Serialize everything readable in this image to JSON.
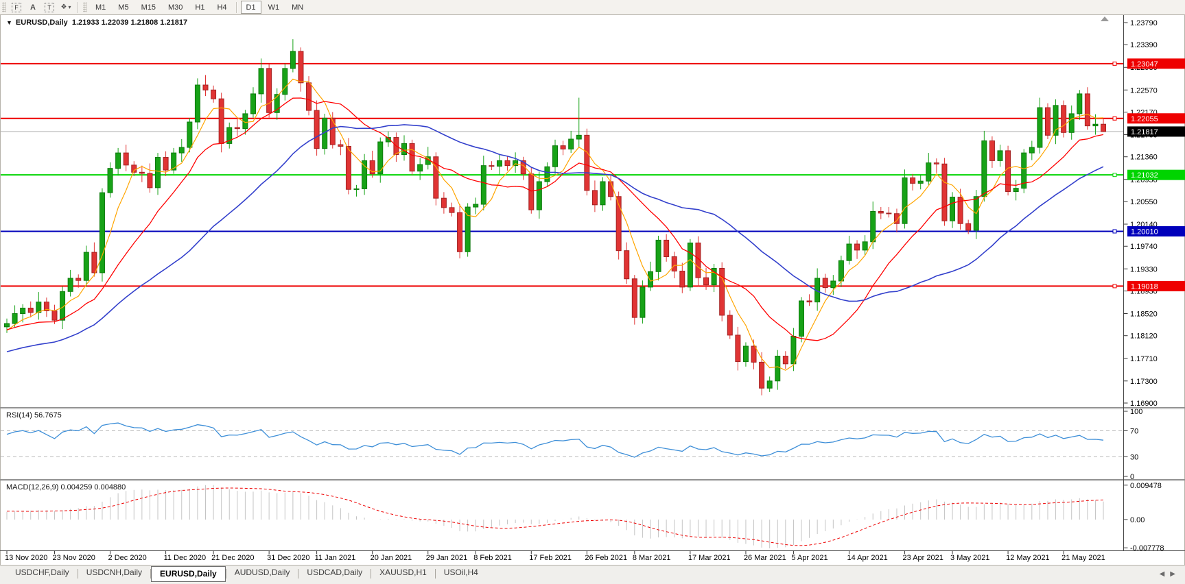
{
  "toolbar": {
    "tools": [
      {
        "name": "fibonacci-tool",
        "glyph": "F",
        "kind": "dotbox"
      },
      {
        "name": "text-tool",
        "glyph": "A",
        "kind": "plain"
      },
      {
        "name": "text-label-tool",
        "glyph": "T",
        "kind": "dotbox"
      },
      {
        "name": "arrows-tool",
        "glyph": "❖",
        "kind": "dropdown"
      }
    ],
    "timeframes": [
      "M1",
      "M5",
      "M15",
      "M30",
      "H1",
      "H4",
      "D1",
      "W1",
      "MN"
    ],
    "active_timeframe": "D1"
  },
  "chart": {
    "symbol_title": "EURUSD,Daily",
    "ohlc_text": "1.21933 1.22039 1.21808 1.21817",
    "price_axis": [
      "1.23790",
      "1.23390",
      "1.22980",
      "1.22570",
      "1.22170",
      "1.21760",
      "1.21360",
      "1.20950",
      "1.20550",
      "1.20140",
      "1.19740",
      "1.19330",
      "1.18930",
      "1.18520",
      "1.18120",
      "1.17710",
      "1.17300",
      "1.16900"
    ],
    "price_top": 1.2379,
    "price_bottom": 1.169,
    "hlines": [
      {
        "price": 1.23047,
        "label": "1.23047",
        "color": "#ee0000"
      },
      {
        "price": 1.22055,
        "label": "1.22055",
        "color": "#ee0000"
      },
      {
        "price": 1.21032,
        "label": "1.21032",
        "color": "#00d400"
      },
      {
        "price": 1.2001,
        "label": "1.20010",
        "color": "#0000bb"
      },
      {
        "price": 1.19018,
        "label": "1.19018",
        "color": "#ee0000"
      }
    ],
    "current_price": {
      "value": 1.21817,
      "label": "1.21817",
      "color": "#000000"
    },
    "candles": {
      "first_open": 1.1828,
      "closes": [
        1.1834,
        1.1852,
        1.1862,
        1.1854,
        1.1873,
        1.1857,
        1.184,
        1.1892,
        1.1916,
        1.1912,
        1.1963,
        1.1926,
        1.2071,
        1.2115,
        1.2143,
        1.2121,
        1.2108,
        1.2106,
        1.208,
        1.2135,
        1.2112,
        1.2143,
        1.2153,
        1.2199,
        1.2266,
        1.2257,
        1.2241,
        1.216,
        1.2189,
        1.2187,
        1.2214,
        1.225,
        1.2296,
        1.2216,
        1.2249,
        1.2296,
        1.2327,
        1.227,
        1.222,
        1.2151,
        1.2206,
        1.2158,
        1.2155,
        1.2077,
        1.2078,
        1.2129,
        1.2105,
        1.2163,
        1.2171,
        1.214,
        1.216,
        1.211,
        1.2122,
        1.2136,
        1.2061,
        1.2044,
        1.2035,
        1.1964,
        1.2045,
        1.205,
        1.212,
        1.2119,
        1.2129,
        1.212,
        1.2129,
        1.2105,
        1.204,
        1.2091,
        1.2118,
        1.2156,
        1.215,
        1.2168,
        1.2175,
        1.2075,
        1.2049,
        1.2091,
        1.2064,
        1.1966,
        1.1915,
        1.1845,
        1.19,
        1.1928,
        1.1985,
        1.1955,
        1.1929,
        1.19,
        1.198,
        1.1917,
        1.1904,
        1.1934,
        1.1849,
        1.1813,
        1.1765,
        1.1793,
        1.1764,
        1.1717,
        1.173,
        1.1775,
        1.1761,
        1.1811,
        1.1875,
        1.1873,
        1.1916,
        1.1899,
        1.1911,
        1.1948,
        1.1978,
        1.1967,
        1.1982,
        1.2037,
        1.2034,
        1.2033,
        1.2015,
        1.2098,
        1.2088,
        1.2092,
        1.2125,
        1.2123,
        1.202,
        1.2063,
        1.2015,
        1.2003,
        1.2064,
        1.2165,
        1.2129,
        1.2147,
        1.2073,
        1.2079,
        1.2143,
        1.2153,
        1.2225,
        1.2175,
        1.2229,
        1.218,
        1.2214,
        1.225,
        1.2192,
        1.2195,
        1.21817
      ],
      "wick_up": [
        9,
        15,
        7,
        12,
        18,
        8,
        11
      ],
      "wick_dn": [
        11,
        7,
        16,
        9,
        13
      ],
      "overrides": {
        "36": {
          "h": 1.2349
        },
        "57": {
          "l": 1.1952
        },
        "72": {
          "h": 1.2243
        },
        "95": {
          "l": 1.1704
        },
        "138": {
          "h": 1.22039,
          "l": 1.21808
        }
      }
    },
    "ma_seed": [
      1.1725,
      1.174,
      1.1755,
      1.177,
      1.1785,
      1.179,
      1.1775,
      1.176,
      1.1748,
      1.1735,
      1.172,
      1.1708,
      1.1718,
      1.173,
      1.1745,
      1.176,
      1.1772,
      1.1785,
      1.1798,
      1.181,
      1.1822,
      1.1835,
      1.1848,
      1.1838,
      1.1825,
      1.1812,
      1.18,
      1.1815,
      1.1828,
      1.183
    ],
    "ma_periods": {
      "fast": 5,
      "mid": 13,
      "slow": 30
    },
    "colors": {
      "bull": "#17a217",
      "bear": "#e03434",
      "ma_fast": "#ffa500",
      "ma_mid": "#ff0000",
      "ma_slow": "#3340cc",
      "rsi_line": "#3e8fd8",
      "macd_bar": "#c4c4c4",
      "macd_signal": "#ee0000",
      "grid_dash": "#b8b8b8",
      "axis_line": "#4a4a4a",
      "current_line": "#b4b4b4"
    },
    "dates": [
      {
        "label": "13 Nov 2020",
        "i": 0
      },
      {
        "label": "23 Nov 2020",
        "i": 6
      },
      {
        "label": "2 Dec 2020",
        "i": 13
      },
      {
        "label": "11 Dec 2020",
        "i": 20
      },
      {
        "label": "21 Dec 2020",
        "i": 26
      },
      {
        "label": "31 Dec 2020",
        "i": 33
      },
      {
        "label": "11 Jan 2021",
        "i": 39
      },
      {
        "label": "20 Jan 2021",
        "i": 46
      },
      {
        "label": "29 Jan 2021",
        "i": 53
      },
      {
        "label": "8 Feb 2021",
        "i": 59
      },
      {
        "label": "17 Feb 2021",
        "i": 66
      },
      {
        "label": "26 Feb 2021",
        "i": 73
      },
      {
        "label": "8 Mar 2021",
        "i": 79
      },
      {
        "label": "17 Mar 2021",
        "i": 86
      },
      {
        "label": "26 Mar 2021",
        "i": 93
      },
      {
        "label": "5 Apr 2021",
        "i": 99
      },
      {
        "label": "14 Apr 2021",
        "i": 106
      },
      {
        "label": "23 Apr 2021",
        "i": 113
      },
      {
        "label": "3 May 2021",
        "i": 119
      },
      {
        "label": "12 May 2021",
        "i": 126
      },
      {
        "label": "21 May 2021",
        "i": 133
      }
    ]
  },
  "rsi": {
    "label": "RSI(14) 56.7675",
    "period": 14,
    "axis": [
      "100",
      "70",
      "30",
      "0"
    ],
    "levels": [
      70,
      30
    ]
  },
  "macd": {
    "label": "MACD(12,26,9) 0.004259 0.004880",
    "fast": 12,
    "slow": 26,
    "signal": 9,
    "axis_top": "0.009478",
    "axis_zero": "0.00",
    "axis_bottom": "-0.007778",
    "max": 0.009478,
    "min": -0.007778
  },
  "tabs": {
    "items": [
      "USDCHF,Daily",
      "USDCNH,Daily",
      "EURUSD,Daily",
      "AUDUSD,Daily",
      "USDCAD,Daily",
      "XAUUSD,H1",
      "USOil,H4"
    ],
    "active": "EURUSD,Daily",
    "nav_left": "◀",
    "nav_right": "▶"
  }
}
